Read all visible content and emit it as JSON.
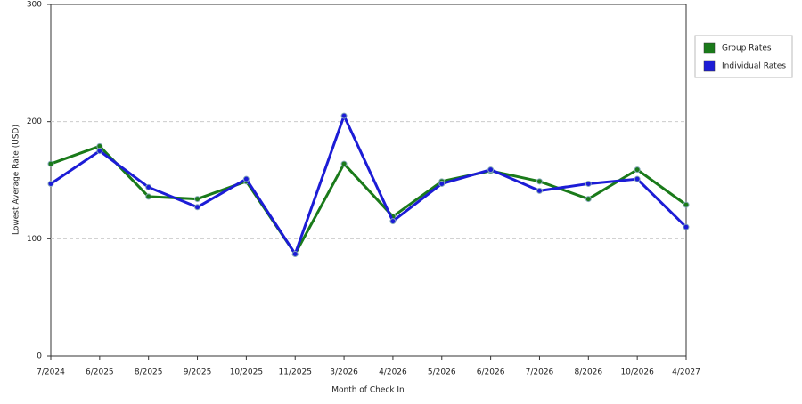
{
  "chart_data": {
    "type": "line",
    "x_label": "Month of Check In",
    "y_label": "Lowest Average Rate (USD)",
    "categories": [
      "7/2024",
      "6/2025",
      "8/2025",
      "9/2025",
      "10/2025",
      "11/2025",
      "3/2026",
      "4/2026",
      "5/2026",
      "6/2026",
      "7/2026",
      "8/2026",
      "10/2026",
      "4/2027"
    ],
    "series": [
      {
        "name": "Group Rates",
        "color": "#1a7a1a",
        "values": [
          164,
          179,
          136,
          134,
          149,
          87,
          164,
          119,
          149,
          158,
          149,
          134,
          159,
          129
        ]
      },
      {
        "name": "Individual Rates",
        "color": "#1c1cd6",
        "values": [
          147,
          175,
          144,
          127,
          151,
          87,
          205,
          115,
          147,
          159,
          141,
          147,
          151,
          110
        ]
      }
    ],
    "ylim": [
      0,
      300
    ],
    "yticks": [
      0,
      100,
      200,
      300
    ],
    "grid": true,
    "legend": "right"
  }
}
